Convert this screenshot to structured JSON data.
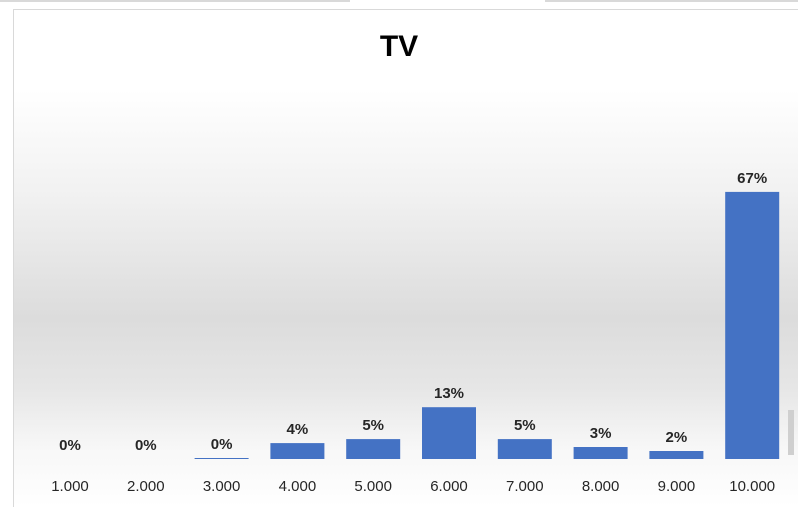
{
  "chart_data": {
    "type": "bar",
    "title": "TV",
    "xlabel": "",
    "ylabel": "",
    "categories": [
      "1.000",
      "2.000",
      "3.000",
      "4.000",
      "5.000",
      "6.000",
      "7.000",
      "8.000",
      "9.000",
      "10.000"
    ],
    "values": [
      0,
      0,
      0.2,
      4,
      5,
      13,
      5,
      3,
      2,
      67
    ],
    "data_labels": [
      "0%",
      "0%",
      "0%",
      "4%",
      "5%",
      "13%",
      "5%",
      "3%",
      "2%",
      "67%"
    ],
    "unit": "%",
    "ylim": [
      0,
      75
    ],
    "grid": false,
    "legend": "none",
    "colors": {
      "bar": "#4472c4"
    }
  }
}
